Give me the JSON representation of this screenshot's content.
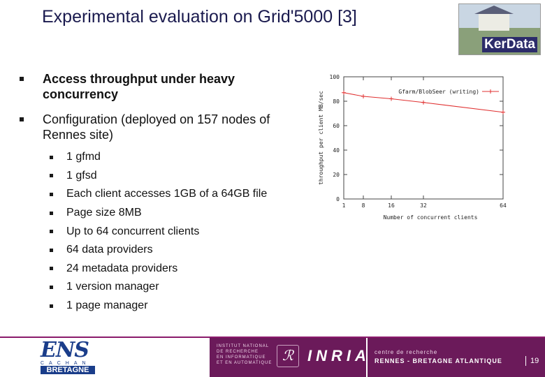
{
  "slide": {
    "title": "Experimental evaluation on Grid'5000 [3]",
    "bullets": [
      "Access throughput under heavy concurrency",
      "Configuration (deployed on 157 nodes of Rennes site)"
    ],
    "sub_bullets": [
      "1 gfmd",
      "1 gfsd",
      "Each client accesses 1GB of a 64GB file",
      "Page size 8MB",
      "Up to 64 concurrent clients",
      "64 data providers",
      "24 metadata providers",
      "1 version manager",
      "1 page manager"
    ],
    "page_number": "19"
  },
  "logos": {
    "kerdata": "KerData",
    "ens_main": "ENS",
    "ens_sub": "CACHAN",
    "ens_region": "BRETAGNE",
    "inria_institute": [
      "INSTITUT NATIONAL",
      "DE RECHERCHE",
      "EN INFORMATIQUE",
      "ET EN AUTOMATIQUE"
    ],
    "inria_name": "INRIA",
    "centre_line1": "centre de recherche",
    "centre_line2": "RENNES - BRETAGNE ATLANTIQUE"
  },
  "colors": {
    "title": "#1a1a4e",
    "footer_purple": "#6b1a5a",
    "series": "#e03030"
  },
  "chart_data": {
    "type": "line",
    "xlabel": "Number of concurrent clients",
    "ylabel": "throughput per client MB/sec",
    "x_ticks": [
      "1",
      "8",
      "16",
      "32",
      "64"
    ],
    "y_ticks": [
      0,
      20,
      40,
      60,
      80,
      100
    ],
    "ylim": [
      0,
      100
    ],
    "xlim": [
      1,
      64
    ],
    "series": [
      {
        "name": "Gfarm/BlobSeer (writing)",
        "x": [
          1,
          8,
          16,
          32,
          64
        ],
        "y": [
          87,
          84,
          82,
          79,
          71
        ]
      }
    ],
    "legend_position": "top-right",
    "grid": false
  }
}
